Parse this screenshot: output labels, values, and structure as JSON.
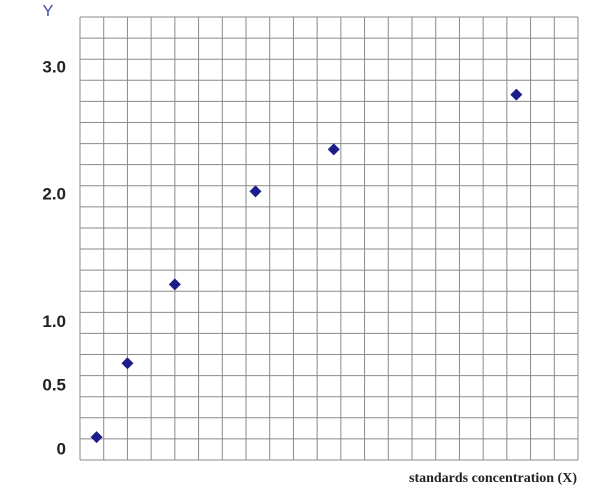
{
  "chart_data": {
    "type": "scatter",
    "y_label": "Y",
    "x_label": "standards concentration (X)",
    "x": [
      0.7,
      2.0,
      4.0,
      7.4,
      10.7,
      18.4
    ],
    "values": [
      0.1,
      0.68,
      1.3,
      2.03,
      2.36,
      2.79
    ],
    "color": "#1c1c8a",
    "xlim": [
      0,
      21
    ],
    "ylim": [
      -0.08,
      3.4
    ],
    "yticks": [
      0,
      0.5,
      {
        "value": 1,
        "label": "1.0"
      },
      {
        "value": 2,
        "label": "2.0"
      },
      {
        "value": 3,
        "label": "3.0"
      }
    ],
    "grid": true
  }
}
